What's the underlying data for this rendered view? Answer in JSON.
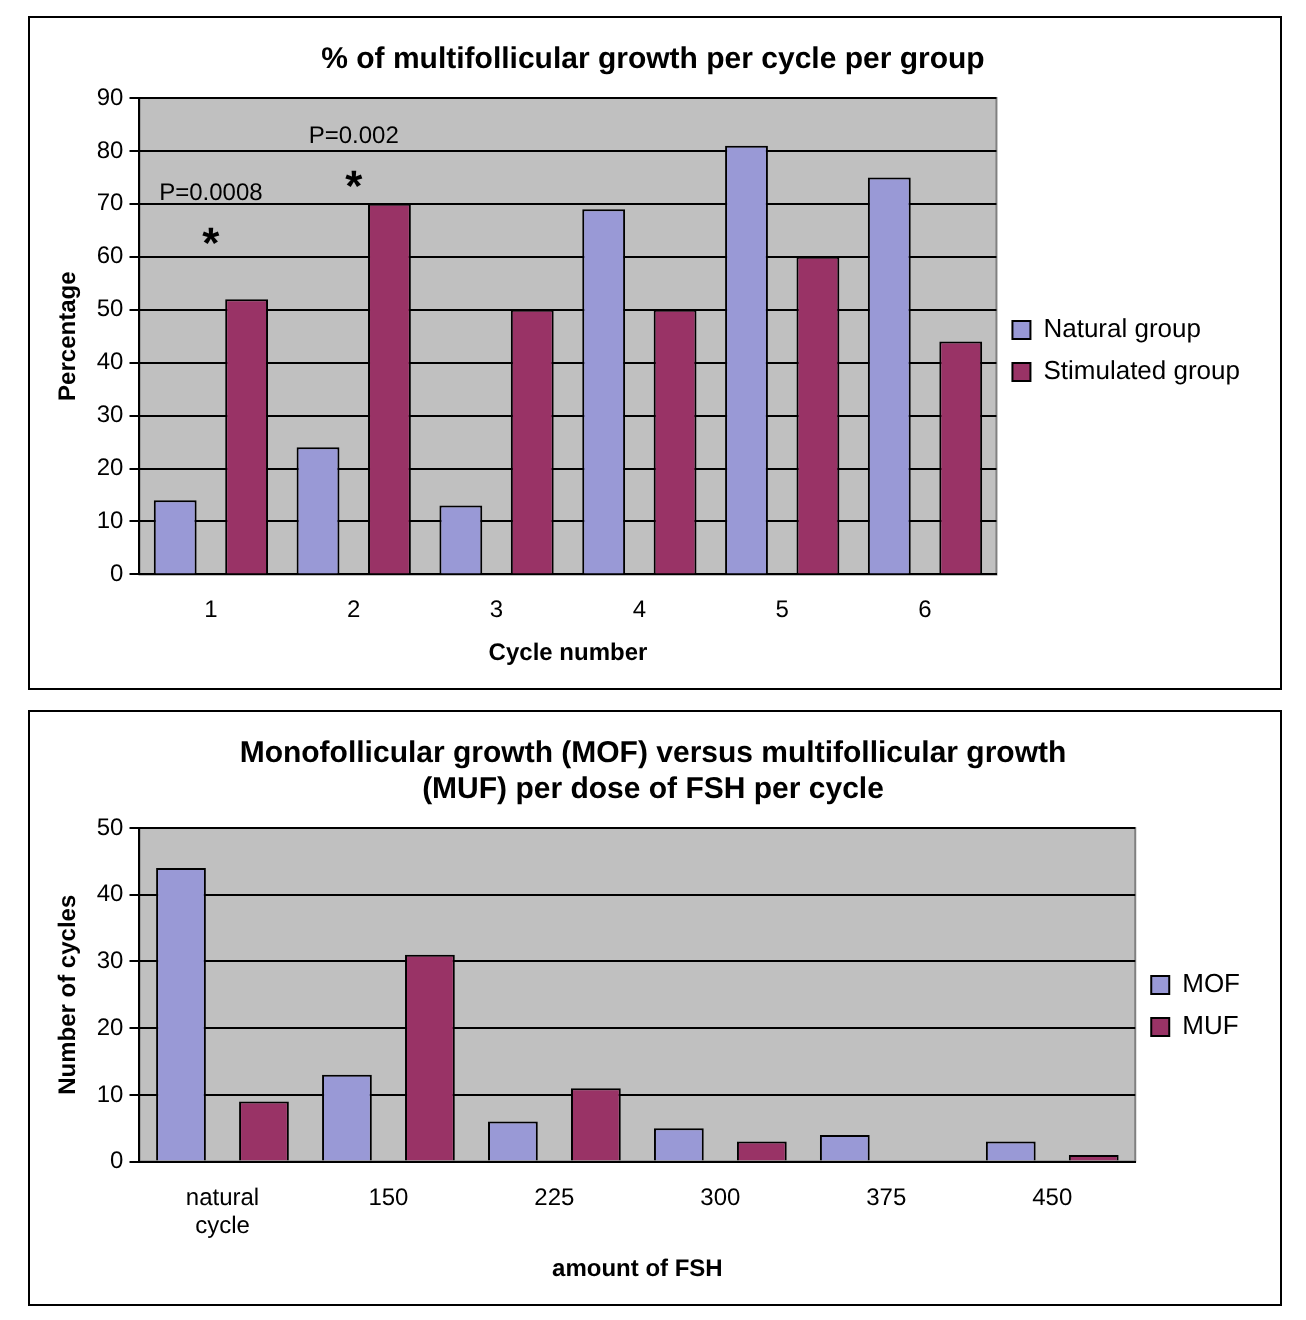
{
  "chart_data": [
    {
      "type": "bar",
      "title": "% of multifollicular growth per cycle per group",
      "xlabel": "Cycle number",
      "ylabel": "Percentage",
      "categories": [
        "1",
        "2",
        "3",
        "4",
        "5",
        "6"
      ],
      "series": [
        {
          "name": "Natural group",
          "color": "#9999d6",
          "values": [
            14,
            24,
            13,
            69,
            81,
            75
          ]
        },
        {
          "name": "Stimulated group",
          "color": "#993366",
          "values": [
            52,
            70,
            50,
            50,
            60,
            44
          ]
        }
      ],
      "ylim": [
        0,
        90
      ],
      "yticks": [
        0,
        10,
        20,
        30,
        40,
        50,
        60,
        70,
        80,
        90
      ],
      "grid": "y",
      "legend": "right",
      "annotations": [
        "P=0.0008",
        "*",
        "P=0.002",
        "*"
      ]
    },
    {
      "type": "bar",
      "title": "Monofollicular growth (MOF) versus multifollicular growth (MUF) per dose of FSH per cycle",
      "xlabel": "amount of FSH",
      "ylabel": "Number of cycles",
      "categories": [
        "natural cycle",
        "150",
        "225",
        "300",
        "375",
        "450"
      ],
      "series": [
        {
          "name": "MOF",
          "color": "#9999d6",
          "values": [
            44,
            13,
            6,
            5,
            4,
            3
          ]
        },
        {
          "name": "MUF",
          "color": "#993366",
          "values": [
            9,
            31,
            11,
            3,
            0,
            1
          ]
        }
      ],
      "ylim": [
        0,
        50
      ],
      "yticks": [
        0,
        10,
        20,
        30,
        40,
        50
      ],
      "grid": "y",
      "legend": "right"
    }
  ]
}
